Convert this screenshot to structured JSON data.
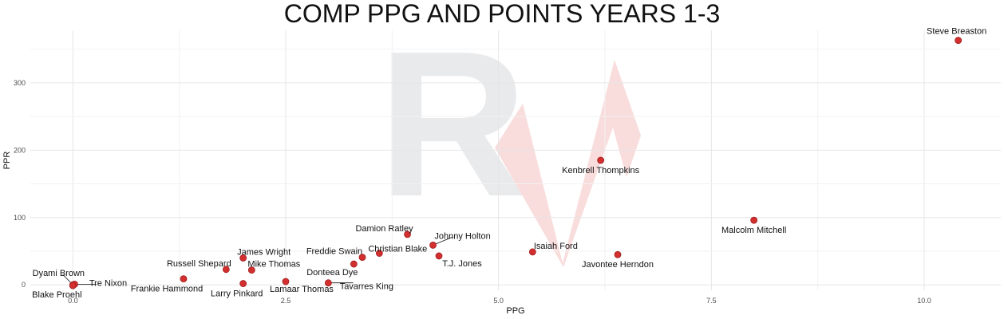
{
  "chart_data": {
    "type": "scatter",
    "title": "COMP PPG AND POINTS YEARS 1-3",
    "xlabel": "PPG",
    "ylabel": "PPR",
    "xlim": [
      -0.5,
      10.9
    ],
    "ylim": [
      -8,
      378
    ],
    "x_ticks": [
      0.0,
      2.5,
      5.0,
      7.5,
      10.0
    ],
    "x_tick_labels": [
      "0.0",
      "2.5",
      "5.0",
      "7.5",
      "10.0"
    ],
    "y_ticks": [
      0,
      100,
      200,
      300
    ],
    "y_tick_labels": [
      "0",
      "100",
      "200",
      "300"
    ],
    "grid": true,
    "point_color": "#d32f2f",
    "watermark": {
      "letter": "R",
      "letter_color": "#e9eaec",
      "mark_color": "#f9dcdc"
    },
    "points": [
      {
        "name": "Steve Breaston",
        "x": 10.4,
        "y": 363
      },
      {
        "name": "Kenbrell Thompkins",
        "x": 6.2,
        "y": 185
      },
      {
        "name": "Malcolm Mitchell",
        "x": 8.0,
        "y": 96
      },
      {
        "name": "Damion Ratley",
        "x": 3.93,
        "y": 75
      },
      {
        "name": "Johnny Holton",
        "x": 4.23,
        "y": 59
      },
      {
        "name": "Christian Blake",
        "x": 3.6,
        "y": 47
      },
      {
        "name": "T.J. Jones",
        "x": 4.3,
        "y": 43
      },
      {
        "name": "Isaiah Ford",
        "x": 5.4,
        "y": 49
      },
      {
        "name": "Javontee Herndon",
        "x": 6.4,
        "y": 45
      },
      {
        "name": "Freddie Swain",
        "x": 3.4,
        "y": 41
      },
      {
        "name": "Donteea Dye",
        "x": 3.3,
        "y": 31
      },
      {
        "name": "James Wright",
        "x": 2.0,
        "y": 40
      },
      {
        "name": "Mike Thomas",
        "x": 2.1,
        "y": 22
      },
      {
        "name": "Russell Shepard",
        "x": 1.8,
        "y": 23
      },
      {
        "name": "Frankie Hammond",
        "x": 1.3,
        "y": 9
      },
      {
        "name": "Larry Pinkard",
        "x": 2.0,
        "y": 2
      },
      {
        "name": "Lamaar Thomas",
        "x": 2.5,
        "y": 5
      },
      {
        "name": "Tavarres King",
        "x": 3.0,
        "y": 3
      },
      {
        "name": "Dyami Brown",
        "x": 0.0,
        "y": 0
      },
      {
        "name": "Tre Nixon",
        "x": 0.02,
        "y": 1
      },
      {
        "name": "Blake Proehl",
        "x": 0.0,
        "y": -1
      }
    ]
  }
}
